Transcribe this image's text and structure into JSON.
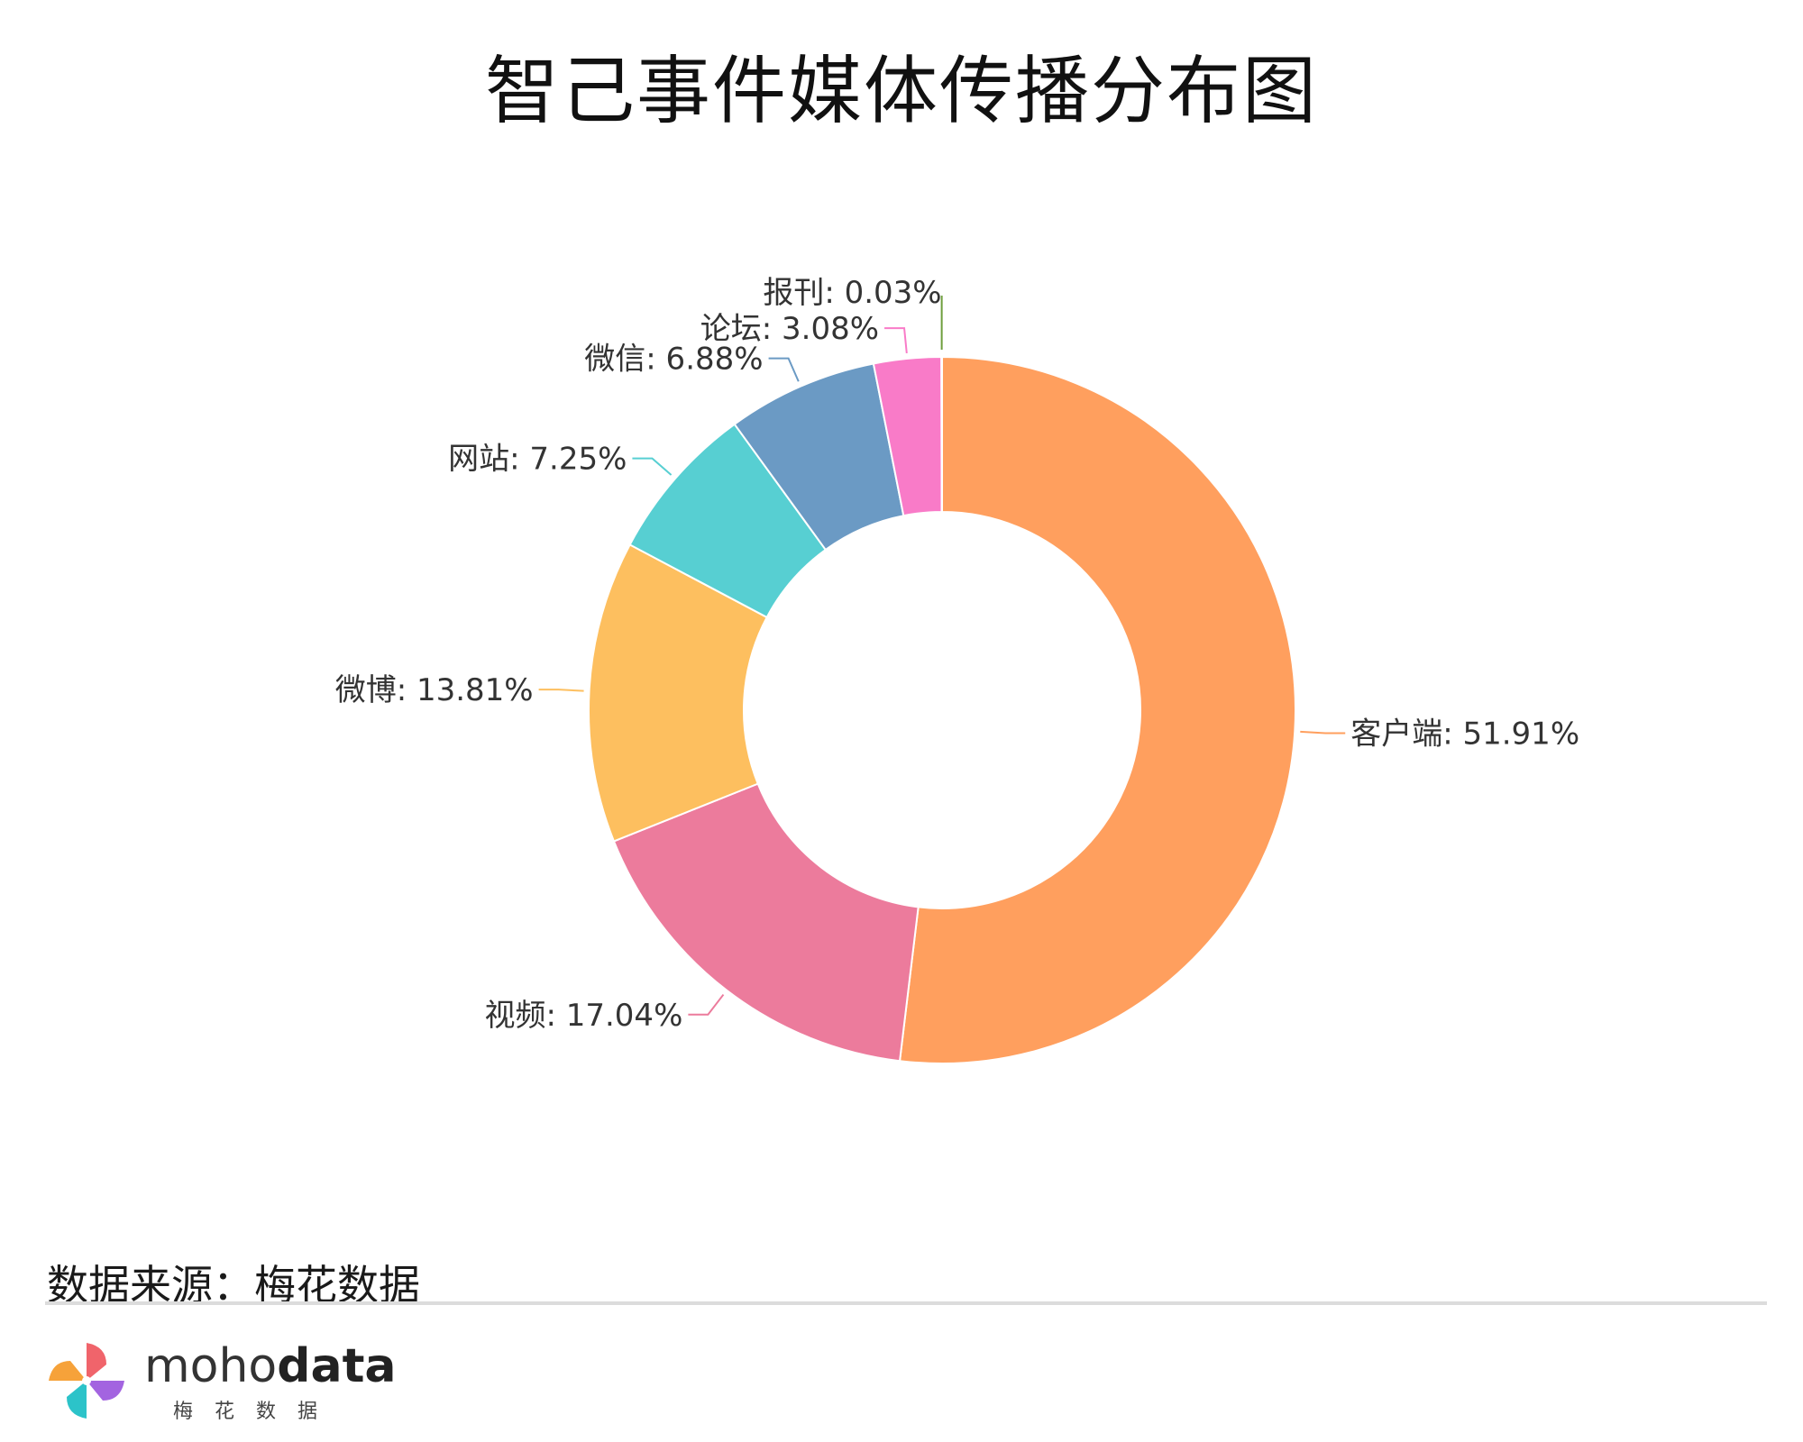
{
  "title": "智己事件媒体传播分布图",
  "chart_data": {
    "type": "pie",
    "variant": "donut",
    "title": "智己事件媒体传播分布图",
    "slices": [
      {
        "label": "客户端",
        "value": 51.91,
        "display": "客户端: 51.91%",
        "color": "#FF9F5E"
      },
      {
        "label": "视频",
        "value": 17.04,
        "display": "视频: 17.04%",
        "color": "#EC7B9C"
      },
      {
        "label": "微博",
        "value": 13.81,
        "display": "微博: 13.81%",
        "color": "#FDBF5F"
      },
      {
        "label": "网站",
        "value": 7.25,
        "display": "网站: 7.25%",
        "color": "#57CFD2"
      },
      {
        "label": "微信",
        "value": 6.88,
        "display": "微信: 6.88%",
        "color": "#6B9AC4"
      },
      {
        "label": "论坛",
        "value": 3.08,
        "display": "论坛: 3.08%",
        "color": "#F97BC8"
      },
      {
        "label": "报刊",
        "value": 0.03,
        "display": "报刊: 0.03%",
        "color": "#6E9E3C"
      }
    ]
  },
  "footer": {
    "source": "数据来源：梅花数据",
    "brand_regular": "moho",
    "brand_bold": "data",
    "brand_subtitle": "梅花数据",
    "logo_icon": "pinwheel-logo-icon"
  }
}
